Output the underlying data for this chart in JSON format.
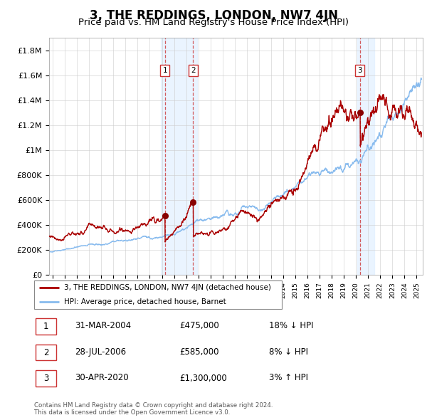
{
  "title": "3, THE REDDINGS, LONDON, NW7 4JN",
  "subtitle": "Price paid vs. HM Land Registry's House Price Index (HPI)",
  "ylabel_ticks": [
    "£0",
    "£200K",
    "£400K",
    "£600K",
    "£800K",
    "£1M",
    "£1.2M",
    "£1.4M",
    "£1.6M",
    "£1.8M"
  ],
  "ytick_values": [
    0,
    200000,
    400000,
    600000,
    800000,
    1000000,
    1200000,
    1400000,
    1600000,
    1800000
  ],
  "ylim": [
    0,
    1900000
  ],
  "xlim_start": 1994.7,
  "xlim_end": 2025.5,
  "sale_dates": [
    2004.25,
    2006.58,
    2020.33
  ],
  "sale_prices": [
    475000,
    585000,
    1300000
  ],
  "sale_labels": [
    "1",
    "2",
    "3"
  ],
  "hpi_color": "#88bbee",
  "price_color": "#aa0000",
  "sale_marker_color": "#880000",
  "background_color": "#ffffff",
  "grid_color": "#cccccc",
  "legend_house": "3, THE REDDINGS, LONDON, NW7 4JN (detached house)",
  "legend_hpi": "HPI: Average price, detached house, Barnet",
  "table_rows": [
    [
      "1",
      "31-MAR-2004",
      "£475,000",
      "18% ↓ HPI"
    ],
    [
      "2",
      "28-JUL-2006",
      "£585,000",
      "8% ↓ HPI"
    ],
    [
      "3",
      "30-APR-2020",
      "£1,300,000",
      "3% ↑ HPI"
    ]
  ],
  "footnote": "Contains HM Land Registry data © Crown copyright and database right 2024.\nThis data is licensed under the Open Government Licence v3.0.",
  "title_fontsize": 12,
  "subtitle_fontsize": 9.5,
  "tick_fontsize": 8,
  "span_color": "#ddeeff",
  "span_alpha": 0.6
}
